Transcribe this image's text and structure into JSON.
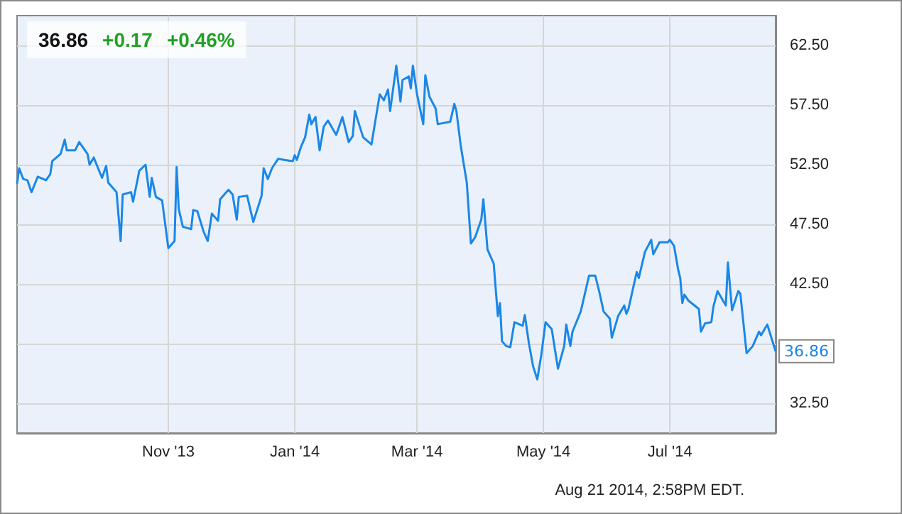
{
  "chart_data": {
    "type": "line",
    "title": "36.86",
    "annotations": [
      "+0.17",
      "+0.46%",
      "Aug 21 2014, 2:58PM EDT.",
      {
        "text": "36.86",
        "x": "2014-08-21",
        "y": 36.86
      }
    ],
    "x": [
      "2013-08-20",
      "2013-08-21",
      "2013-08-23",
      "2013-08-25",
      "2013-08-27",
      "2013-08-30",
      "2013-09-03",
      "2013-09-05",
      "2013-09-06",
      "2013-09-10",
      "2013-09-12",
      "2013-09-13",
      "2013-09-17",
      "2013-09-19",
      "2013-09-23",
      "2013-09-24",
      "2013-09-26",
      "2013-09-30",
      "2013-10-02",
      "2013-10-03",
      "2013-10-07",
      "2013-10-09",
      "2013-10-10",
      "2013-10-14",
      "2013-10-15",
      "2013-10-18",
      "2013-10-21",
      "2013-10-23",
      "2013-10-24",
      "2013-10-26",
      "2013-10-29",
      "2013-11-01",
      "2013-11-04",
      "2013-11-05",
      "2013-11-06",
      "2013-11-08",
      "2013-11-12",
      "2013-11-13",
      "2013-11-15",
      "2013-11-18",
      "2013-11-20",
      "2013-11-22",
      "2013-11-25",
      "2013-11-26",
      "2013-11-30",
      "2013-12-02",
      "2013-12-04",
      "2013-12-05",
      "2013-12-09",
      "2013-12-12",
      "2013-12-16",
      "2013-12-17",
      "2013-12-19",
      "2013-12-21",
      "2013-12-24",
      "2013-12-27",
      "2013-12-31",
      "2014-01-01",
      "2014-01-02",
      "2014-01-04",
      "2014-01-06",
      "2014-01-08",
      "2014-01-09",
      "2014-01-11",
      "2014-01-13",
      "2014-01-15",
      "2014-01-17",
      "2014-01-21",
      "2014-01-24",
      "2014-01-27",
      "2014-01-29",
      "2014-01-30",
      "2014-02-03",
      "2014-02-07",
      "2014-02-11",
      "2014-02-13",
      "2014-02-15",
      "2014-02-16",
      "2014-02-19",
      "2014-02-21",
      "2014-02-22",
      "2014-02-25",
      "2014-02-26",
      "2014-02-27",
      "2014-03-01",
      "2014-03-04",
      "2014-03-05",
      "2014-03-07",
      "2014-03-10",
      "2014-03-11",
      "2014-03-17",
      "2014-03-19",
      "2014-03-20",
      "2014-03-22",
      "2014-03-25",
      "2014-03-27",
      "2014-03-29",
      "2014-04-01",
      "2014-04-02",
      "2014-04-04",
      "2014-04-07",
      "2014-04-09",
      "2014-04-10",
      "2014-04-11",
      "2014-04-13",
      "2014-04-15",
      "2014-04-17",
      "2014-04-21",
      "2014-04-22",
      "2014-04-24",
      "2014-04-26",
      "2014-04-28",
      "2014-04-30",
      "2014-05-02",
      "2014-05-05",
      "2014-05-08",
      "2014-05-11",
      "2014-05-12",
      "2014-05-14",
      "2014-05-15",
      "2014-05-19",
      "2014-05-23",
      "2014-05-26",
      "2014-05-28",
      "2014-05-30",
      "2014-06-02",
      "2014-06-03",
      "2014-06-06",
      "2014-06-09",
      "2014-06-10",
      "2014-06-11",
      "2014-06-15",
      "2014-06-16",
      "2014-06-19",
      "2014-06-22",
      "2014-06-23",
      "2014-06-26",
      "2014-06-30",
      "2014-07-01",
      "2014-07-03",
      "2014-07-05",
      "2014-07-06",
      "2014-07-07",
      "2014-07-08",
      "2014-07-10",
      "2014-07-15",
      "2014-07-16",
      "2014-07-18",
      "2014-07-21",
      "2014-07-22",
      "2014-07-24",
      "2014-07-28",
      "2014-07-29",
      "2014-07-31",
      "2014-08-03",
      "2014-08-04",
      "2014-08-07",
      "2014-08-10",
      "2014-08-13",
      "2014-08-14",
      "2014-08-17",
      "2014-08-21"
    ],
    "series": [
      {
        "color": "#1a87e8",
        "values": [
          50.9,
          52.2,
          51.3,
          51.2,
          50.2,
          51.5,
          51.2,
          51.7,
          52.8,
          53.4,
          54.6,
          53.7,
          53.7,
          54.4,
          53.4,
          52.5,
          53.1,
          51.4,
          52.4,
          51.0,
          50.2,
          46.1,
          50.0,
          50.2,
          49.4,
          52.0,
          52.5,
          49.8,
          51.4,
          49.8,
          49.5,
          45.5,
          46.1,
          52.3,
          48.8,
          47.3,
          47.1,
          48.7,
          48.6,
          46.9,
          46.1,
          48.4,
          47.8,
          49.6,
          50.4,
          50.0,
          47.9,
          49.8,
          49.9,
          47.7,
          49.9,
          52.2,
          51.3,
          52.2,
          53.0,
          52.9,
          52.8,
          53.3,
          52.9,
          54.0,
          54.8,
          56.7,
          55.9,
          56.5,
          53.7,
          55.7,
          56.2,
          55.0,
          56.5,
          54.4,
          54.9,
          57.0,
          54.8,
          54.2,
          58.4,
          57.9,
          58.8,
          57.0,
          60.8,
          57.8,
          59.6,
          59.9,
          58.9,
          60.8,
          58.4,
          55.9,
          60.0,
          58.2,
          57.2,
          55.9,
          56.1,
          57.6,
          57.0,
          54.2,
          51.0,
          45.9,
          46.4,
          47.9,
          49.6,
          45.4,
          44.2,
          39.8,
          40.9,
          37.7,
          37.3,
          37.2,
          39.3,
          39.0,
          39.9,
          37.5,
          35.6,
          34.5,
          36.6,
          39.3,
          38.7,
          35.4,
          37.3,
          39.1,
          37.3,
          38.5,
          40.2,
          43.2,
          43.2,
          41.8,
          40.2,
          39.6,
          38.0,
          39.8,
          40.7,
          40.0,
          40.4,
          43.5,
          43.0,
          45.2,
          46.2,
          45.0,
          46.0,
          46.0,
          46.2,
          45.7,
          43.7,
          43.0,
          40.9,
          41.6,
          41.1,
          40.4,
          38.5,
          39.2,
          39.3,
          40.6,
          41.9,
          40.7,
          44.3,
          40.3,
          41.9,
          41.7,
          36.7,
          37.3,
          38.5,
          38.2,
          39.1,
          36.86
        ]
      }
    ],
    "xlim": [
      "2013-08-20",
      "2014-08-21"
    ],
    "xticks": [
      {
        "value": "2013-11-01",
        "label": "Nov '13"
      },
      {
        "value": "2014-01-01",
        "label": "Jan '14"
      },
      {
        "value": "2014-03-01",
        "label": "Mar '14"
      },
      {
        "value": "2014-05-01",
        "label": "May '14"
      },
      {
        "value": "2014-07-01",
        "label": "Jul '14"
      }
    ],
    "ylim": [
      30,
      65
    ],
    "yticks": [
      {
        "value": 32.5,
        "label": "32.50"
      },
      {
        "value": 37.5,
        "label": null
      },
      {
        "value": 42.5,
        "label": "42.50"
      },
      {
        "value": 47.5,
        "label": "47.50"
      },
      {
        "value": 52.5,
        "label": "52.50"
      },
      {
        "value": 57.5,
        "label": "57.50"
      },
      {
        "value": 62.5,
        "label": "62.50"
      }
    ],
    "grid": true,
    "marker": "none",
    "line_style": "solid"
  }
}
